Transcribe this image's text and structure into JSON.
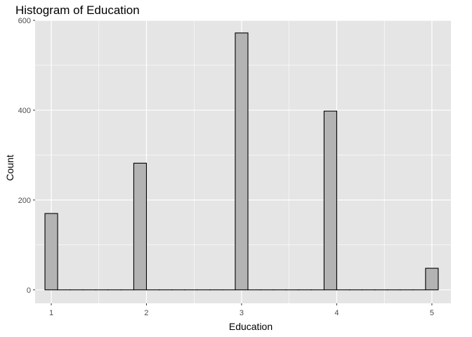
{
  "chart_data": {
    "type": "bar",
    "title": "Histogram of Education",
    "xlabel": "Education",
    "ylabel": "Count",
    "xlim": [
      0.83,
      5.2
    ],
    "ylim": [
      -30,
      600
    ],
    "x_ticks": [
      1,
      2,
      3,
      4,
      5
    ],
    "y_ticks": [
      0,
      200,
      400,
      600
    ],
    "bin_width": 0.1333,
    "bins": [
      {
        "center": 1.0,
        "count": 170
      },
      {
        "center": 1.1333,
        "count": 0
      },
      {
        "center": 1.2667,
        "count": 0
      },
      {
        "center": 1.4,
        "count": 0
      },
      {
        "center": 1.5333,
        "count": 0
      },
      {
        "center": 1.6667,
        "count": 0
      },
      {
        "center": 1.8,
        "count": 0
      },
      {
        "center": 1.9333,
        "count": 282
      },
      {
        "center": 2.0667,
        "count": 0
      },
      {
        "center": 2.2,
        "count": 0
      },
      {
        "center": 2.3333,
        "count": 0
      },
      {
        "center": 2.4667,
        "count": 0
      },
      {
        "center": 2.6,
        "count": 0
      },
      {
        "center": 2.7333,
        "count": 0
      },
      {
        "center": 2.8667,
        "count": 0
      },
      {
        "center": 3.0,
        "count": 572
      },
      {
        "center": 3.1333,
        "count": 0
      },
      {
        "center": 3.2667,
        "count": 0
      },
      {
        "center": 3.4,
        "count": 0
      },
      {
        "center": 3.5333,
        "count": 0
      },
      {
        "center": 3.6667,
        "count": 0
      },
      {
        "center": 3.8,
        "count": 0
      },
      {
        "center": 3.9333,
        "count": 398
      },
      {
        "center": 4.0667,
        "count": 0
      },
      {
        "center": 4.2,
        "count": 0
      },
      {
        "center": 4.3333,
        "count": 0
      },
      {
        "center": 4.4667,
        "count": 0
      },
      {
        "center": 4.6,
        "count": 0
      },
      {
        "center": 4.7333,
        "count": 0
      },
      {
        "center": 4.8667,
        "count": 0
      },
      {
        "center": 5.0,
        "count": 48
      }
    ],
    "colors": {
      "panel": "#e5e5e5",
      "grid": "#ffffff",
      "bar_fill": "#b3b3b3",
      "bar_stroke": "#000000"
    },
    "grid": true,
    "legend": "none"
  }
}
